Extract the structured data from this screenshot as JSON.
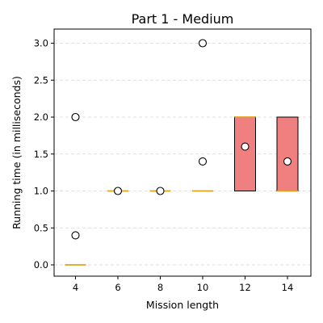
{
  "chart_data": {
    "type": "box",
    "title": "Part 1 - Medium",
    "xlabel": "Mission length",
    "ylabel": "Running time (in milliseconds)",
    "ylim": [
      -0.15,
      3.15
    ],
    "yticks": [
      "0.0",
      "0.5",
      "1.0",
      "1.5",
      "2.0",
      "2.5",
      "3.0"
    ],
    "grid": "y-dashed",
    "box_color": "#f08080",
    "median_color": "#e0a21a",
    "categories": [
      "4",
      "6",
      "8",
      "10",
      "12",
      "14"
    ],
    "boxes": [
      {
        "q1": 0,
        "median": 0,
        "q3": 0,
        "whisker_low": 0,
        "whisker_high": 0,
        "fliers": [
          0.4,
          2.0
        ]
      },
      {
        "q1": 1,
        "median": 1,
        "q3": 1,
        "whisker_low": 1,
        "whisker_high": 1,
        "fliers": [
          1.0
        ]
      },
      {
        "q1": 1,
        "median": 1,
        "q3": 1,
        "whisker_low": 1,
        "whisker_high": 1,
        "fliers": [
          1.0
        ]
      },
      {
        "q1": 1,
        "median": 1,
        "q3": 1,
        "whisker_low": 1,
        "whisker_high": 1,
        "fliers": [
          1.4,
          3.0
        ]
      },
      {
        "q1": 1,
        "median": 2,
        "q3": 2,
        "whisker_low": 1,
        "whisker_high": 2,
        "fliers": [
          1.6
        ]
      },
      {
        "q1": 1,
        "median": 1,
        "q3": 2,
        "whisker_low": 1,
        "whisker_high": 2,
        "fliers": [
          1.4
        ]
      }
    ]
  }
}
